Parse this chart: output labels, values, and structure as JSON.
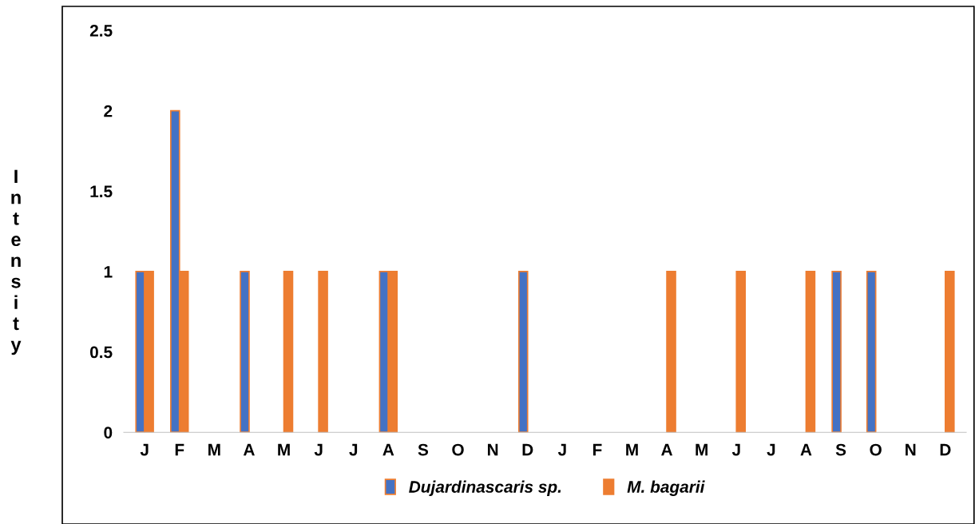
{
  "chart_data": {
    "type": "bar",
    "ylabel": "Intensity",
    "categories": [
      "J",
      "F",
      "M",
      "A",
      "M",
      "J",
      "J",
      "A",
      "S",
      "O",
      "N",
      "D",
      "J",
      "F",
      "M",
      "A",
      "M",
      "J",
      "J",
      "A",
      "S",
      "O",
      "N",
      "D"
    ],
    "series": [
      {
        "name": "Dujardinascaris sp.",
        "color": "#4472c4",
        "values": [
          1,
          2,
          0,
          1,
          0,
          0,
          0,
          1,
          0,
          0,
          0,
          1,
          0,
          0,
          0,
          0,
          0,
          0,
          0,
          0,
          1,
          1,
          0,
          0
        ]
      },
      {
        "name": "M. bagarii",
        "color": "#ed7d31",
        "values": [
          1,
          1,
          0,
          0,
          1,
          1,
          0,
          1,
          0,
          0,
          0,
          0,
          0,
          0,
          0,
          1,
          0,
          1,
          0,
          1,
          0,
          0,
          0,
          1
        ]
      }
    ],
    "ylim": [
      0,
      2.5
    ],
    "yticks": [
      0,
      0.5,
      1,
      1.5,
      2,
      2.5
    ],
    "grid": false,
    "legend": "bottom"
  }
}
